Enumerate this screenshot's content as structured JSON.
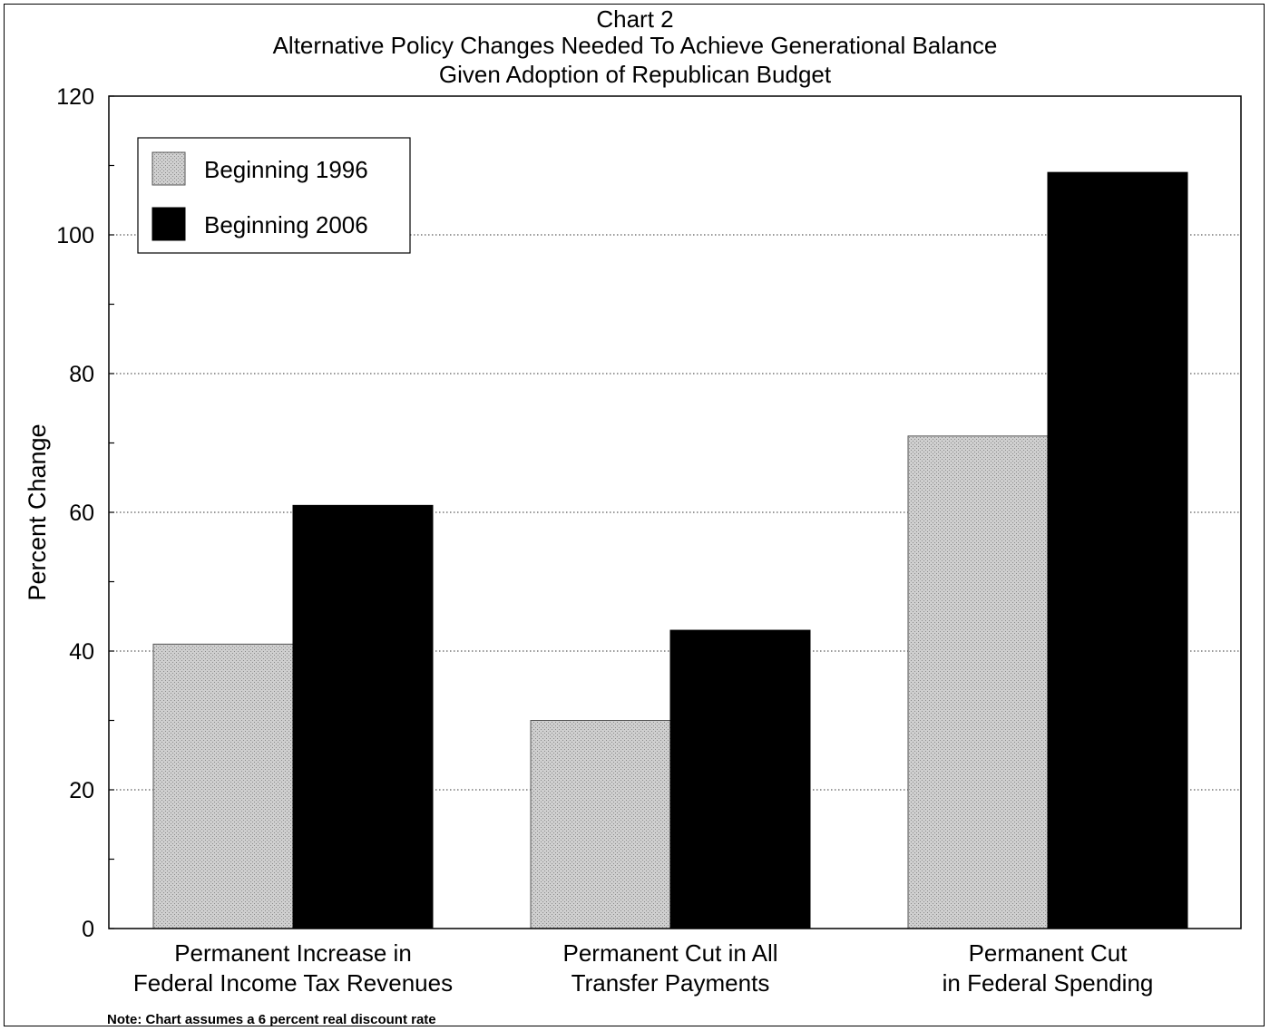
{
  "chart_data": {
    "type": "bar",
    "title_lines": [
      "Chart 2",
      "Alternative Policy Changes Needed To Achieve Generational Balance",
      "Given Adoption of Republican Budget"
    ],
    "ylabel": "Percent Change",
    "xlabel": "",
    "ylim": [
      0,
      120
    ],
    "yticks": [
      "0",
      "20",
      "40",
      "60",
      "80",
      "100",
      "120"
    ],
    "grid": "horizontal dotted at major ticks",
    "legend_position": "top-left",
    "categories": [
      [
        "Permanent Increase in",
        "Federal Income Tax Revenues"
      ],
      [
        "Permanent Cut in All",
        "Transfer Payments"
      ],
      [
        "Permanent Cut",
        "in Federal Spending"
      ]
    ],
    "series": [
      {
        "name": "Beginning 1996",
        "values": [
          41,
          30,
          71
        ],
        "color": "#c8c8c8"
      },
      {
        "name": "Beginning 2006",
        "values": [
          61,
          43,
          109
        ],
        "color": "#000000"
      }
    ],
    "note": "Note: Chart assumes a 6 percent real discount rate"
  }
}
